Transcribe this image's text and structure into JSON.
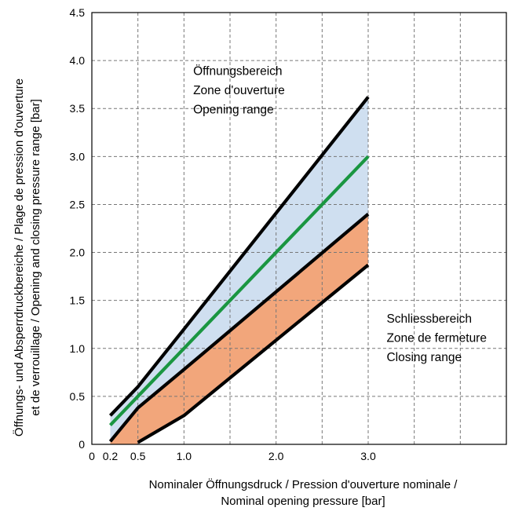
{
  "chart_data": {
    "type": "line",
    "xlabel_lines": [
      "Nominaler Öffnungsdruck / Pression d'ouverture nominale /",
      "Nominal opening pressure [bar]"
    ],
    "ylabel_lines": [
      "Öffnungs- und Absperrdruckbereiche / Plage de pression d'ouverture",
      "et de verrouillage / Opening and closing pressure range [bar]"
    ],
    "xlim": [
      0,
      4.5
    ],
    "ylim": [
      0,
      4.5
    ],
    "x_tick_labels": [
      {
        "value": 0,
        "label": "0"
      },
      {
        "value": 0.2,
        "label": "0.2"
      },
      {
        "value": 0.5,
        "label": "0.5"
      },
      {
        "value": 1.0,
        "label": "1.0"
      },
      {
        "value": 2.0,
        "label": "2.0"
      },
      {
        "value": 3.0,
        "label": "3.0"
      }
    ],
    "y_tick_labels": [
      {
        "value": 0,
        "label": "0"
      },
      {
        "value": 0.5,
        "label": "0.5"
      },
      {
        "value": 1.0,
        "label": "1.0"
      },
      {
        "value": 1.5,
        "label": "1.5"
      },
      {
        "value": 2.0,
        "label": "2.0"
      },
      {
        "value": 2.5,
        "label": "2.5"
      },
      {
        "value": 3.0,
        "label": "3.0"
      },
      {
        "value": 3.5,
        "label": "3.5"
      },
      {
        "value": 4.0,
        "label": "4.0"
      },
      {
        "value": 4.5,
        "label": "4.5"
      }
    ],
    "x_grid": [
      0.5,
      1.0,
      1.5,
      2.0,
      2.5,
      3.0,
      3.5,
      4.0
    ],
    "y_grid": [
      0.5,
      1.0,
      1.5,
      2.0,
      2.5,
      3.0,
      3.5,
      4.0
    ],
    "grid": true,
    "series": [
      {
        "key": "opening_max",
        "color": "#000000",
        "points": [
          [
            0.2,
            0.3
          ],
          [
            0.5,
            0.6
          ],
          [
            1.0,
            1.2
          ],
          [
            3.0,
            3.62
          ]
        ]
      },
      {
        "key": "nominal",
        "color": "#1a9641",
        "points": [
          [
            0.2,
            0.2
          ],
          [
            0.5,
            0.5
          ],
          [
            1.0,
            1.0
          ],
          [
            3.0,
            3.0
          ]
        ]
      },
      {
        "key": "opening_min",
        "color": "#000000",
        "points": [
          [
            0.2,
            0.03
          ],
          [
            0.5,
            0.38
          ],
          [
            1.0,
            0.78
          ],
          [
            3.0,
            2.4
          ]
        ]
      },
      {
        "key": "closing_min",
        "color": "#000000",
        "points": [
          [
            0.5,
            0.02
          ],
          [
            1.0,
            0.3
          ],
          [
            3.0,
            1.87
          ]
        ]
      }
    ],
    "areas": [
      {
        "key": "opening_range",
        "color": "#cfdff0",
        "upper": "opening_max",
        "lower": "opening_min"
      },
      {
        "key": "closing_range",
        "color": "#f2a67b",
        "upper": "opening_min",
        "lower": "closing_min",
        "base_points": [
          [
            0.2,
            0.0
          ],
          [
            0.5,
            0.0
          ]
        ]
      }
    ],
    "annotations": [
      {
        "key": "opening",
        "x": 1.1,
        "y": 3.85,
        "lines": [
          "Öffnungsbereich",
          "Zone d'ouverture",
          "Opening range"
        ]
      },
      {
        "key": "closing",
        "x": 3.2,
        "y": 1.27,
        "lines": [
          "Schliessbereich",
          "Zone de fermeture",
          "Closing range"
        ]
      }
    ]
  }
}
